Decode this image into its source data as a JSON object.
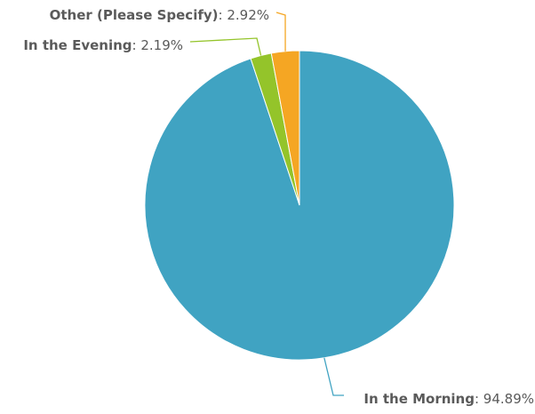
{
  "chart_data": {
    "type": "pie",
    "slices": [
      {
        "label": "In the Morning",
        "value": 94.89,
        "display": "94.89%",
        "color": "#40a3c2"
      },
      {
        "label": "In the Evening",
        "value": 2.19,
        "display": "2.19%",
        "color": "#94c42a"
      },
      {
        "label": "Other (Please Specify)",
        "value": 2.92,
        "display": "2.92%",
        "color": "#f5a623"
      }
    ],
    "start_position": "top",
    "direction": "clockwise",
    "legend": "none",
    "data_labels": "outside with leader lines"
  }
}
